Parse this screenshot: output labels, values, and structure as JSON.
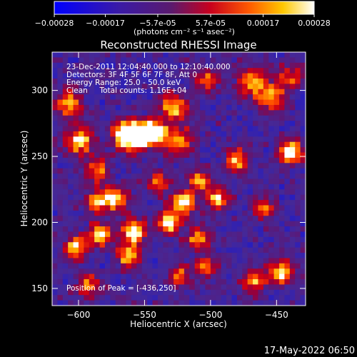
{
  "chart_data": {
    "type": "heatmap",
    "title": "Reconstructed RHESSI Image",
    "xlabel": "Heliocentric X (arcsec)",
    "ylabel": "Heliocentric Y (arcsec)",
    "xlim": [
      -620,
      -428
    ],
    "ylim": [
      137,
      329
    ],
    "x_ticks": [
      -600,
      -550,
      -500,
      -450
    ],
    "y_ticks": [
      150,
      200,
      250,
      300
    ],
    "colorbar": {
      "ticks": [
        "-0.00028",
        "-0.00017",
        "-5.7e-05",
        "5.7e-05",
        "0.00017",
        "0.00028"
      ],
      "unit_text": "(photons cm⁻² s⁻¹ asec⁻²)",
      "range": [
        -0.00028,
        0.00028
      ]
    },
    "annotations": {
      "time_range": "23-Dec-2011 12:04:40.000 to 12:10:40.000",
      "detectors": "Detectors: 3F 4F 5F 6F 7F 8F, Att 0",
      "energy_range": "Energy Range: 25.0 - 50.0 keV",
      "clean_counts": "Clean     Total counts: 1.16E+04",
      "peak_position": "Position of Peak = [-436,250]"
    },
    "peak": [
      -436,
      250
    ],
    "blobs": [
      {
        "x": -551,
        "y": 268,
        "amp": 0.95,
        "w": 6
      },
      {
        "x": -541,
        "y": 268,
        "amp": 0.75,
        "w": 6
      },
      {
        "x": -560,
        "y": 263,
        "amp": 0.7,
        "w": 7
      },
      {
        "x": -566,
        "y": 268,
        "amp": 0.6,
        "w": 6
      },
      {
        "x": -524,
        "y": 262,
        "amp": 0.55,
        "w": 7
      },
      {
        "x": -599,
        "y": 262,
        "amp": 0.7,
        "w": 7
      },
      {
        "x": -585,
        "y": 240,
        "amp": 0.55,
        "w": 6
      },
      {
        "x": -528,
        "y": 288,
        "amp": 0.65,
        "w": 7
      },
      {
        "x": -468,
        "y": 305,
        "amp": 0.6,
        "w": 7
      },
      {
        "x": -453,
        "y": 294,
        "amp": 0.55,
        "w": 7
      },
      {
        "x": -440,
        "y": 253,
        "amp": 0.85,
        "w": 6
      },
      {
        "x": -480,
        "y": 247,
        "amp": 0.6,
        "w": 6
      },
      {
        "x": -508,
        "y": 232,
        "amp": 0.55,
        "w": 6
      },
      {
        "x": -494,
        "y": 218,
        "amp": 0.6,
        "w": 6
      },
      {
        "x": -521,
        "y": 215,
        "amp": 0.8,
        "w": 6
      },
      {
        "x": -531,
        "y": 200,
        "amp": 0.75,
        "w": 6
      },
      {
        "x": -572,
        "y": 218,
        "amp": 0.75,
        "w": 6
      },
      {
        "x": -586,
        "y": 216,
        "amp": 0.55,
        "w": 6
      },
      {
        "x": -584,
        "y": 191,
        "amp": 0.7,
        "w": 6
      },
      {
        "x": -558,
        "y": 193,
        "amp": 0.8,
        "w": 6
      },
      {
        "x": -562,
        "y": 175,
        "amp": 0.65,
        "w": 6
      },
      {
        "x": -509,
        "y": 188,
        "amp": 0.55,
        "w": 6
      },
      {
        "x": -602,
        "y": 181,
        "amp": 0.6,
        "w": 6
      },
      {
        "x": -447,
        "y": 162,
        "amp": 0.75,
        "w": 6
      },
      {
        "x": -467,
        "y": 156,
        "amp": 0.55,
        "w": 6
      },
      {
        "x": -523,
        "y": 160,
        "amp": 0.45,
        "w": 6
      },
      {
        "x": -503,
        "y": 166,
        "amp": 0.45,
        "w": 6
      },
      {
        "x": -592,
        "y": 152,
        "amp": 0.5,
        "w": 6
      },
      {
        "x": -607,
        "y": 290,
        "amp": 0.55,
        "w": 7
      },
      {
        "x": -503,
        "y": 309,
        "amp": 0.45,
        "w": 6
      },
      {
        "x": -440,
        "y": 310,
        "amp": 0.45,
        "w": 6
      },
      {
        "x": -460,
        "y": 210,
        "amp": 0.45,
        "w": 6
      },
      {
        "x": -540,
        "y": 230,
        "amp": 0.5,
        "w": 6
      }
    ]
  },
  "footer": {
    "date": "17-May-2022 06:50"
  }
}
